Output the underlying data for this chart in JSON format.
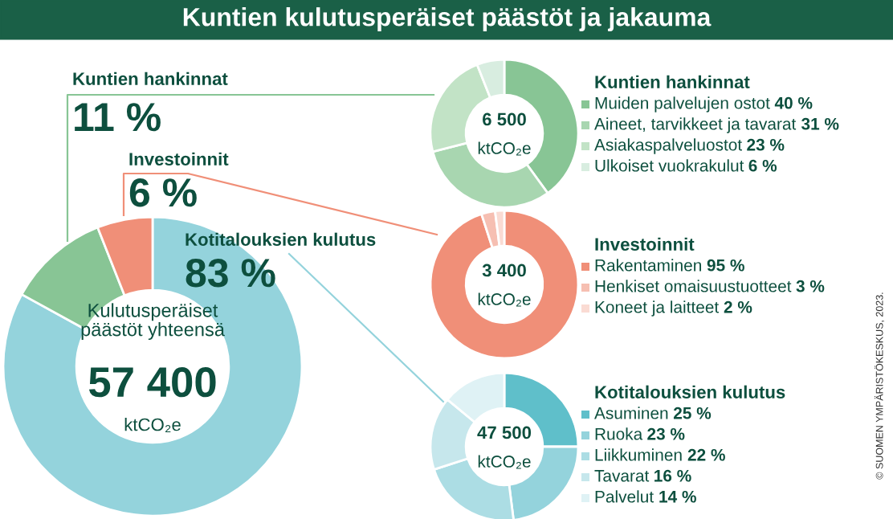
{
  "chart_data": [
    {
      "type": "donut",
      "title": "Kuntien kulutusperäiset päästöt ja jakauma",
      "categories": [
        "Kotitalouksien kulutus",
        "Kuntien hankinnat",
        "Investoinnit"
      ],
      "values": [
        83,
        11,
        6
      ],
      "value_labels": [
        "83 %",
        "11 %",
        "6 %"
      ],
      "colors": [
        "#94d3dc",
        "#88c595",
        "#f08f78"
      ],
      "annotations": [
        "Kulutusperäiset\npäästöt yhteensä",
        "57 400",
        "ktCO₂e",
        "© SUOMEN YMPÄRISTÖKESKUS, 2023."
      ]
    },
    {
      "type": "donut",
      "title": "Kuntien hankinnat",
      "categories": [
        "Muiden palvelujen ostot",
        "Aineet, tarvikkeet ja tavarat",
        "Asiakaspalveluostot",
        "Ulkoiset vuokrakulut"
      ],
      "values": [
        40,
        31,
        23,
        6
      ],
      "value_labels": [
        "40 %",
        "31 %",
        "23 %",
        "6 %"
      ],
      "colors": [
        "#88c595",
        "#a8d6b0",
        "#c2e3c6",
        "#d8ede0"
      ],
      "annotations": [
        "6 500",
        "ktCO₂e"
      ],
      "legend": "right"
    },
    {
      "type": "donut",
      "title": "Investoinnit",
      "categories": [
        "Rakentaminen",
        "Henkiset omaisuustuotteet",
        "Koneet ja laitteet"
      ],
      "values": [
        95,
        3,
        2
      ],
      "value_labels": [
        "95 %",
        "3 %",
        "2 %"
      ],
      "colors": [
        "#f08f78",
        "#f6bfb2",
        "#fadbd3"
      ],
      "annotations": [
        "3 400",
        "ktCO₂e"
      ],
      "legend": "right"
    },
    {
      "type": "donut",
      "title": "Kotitalouksien kulutus",
      "categories": [
        "Asuminen",
        "Ruoka",
        "Liikkuminen",
        "Tavarat",
        "Palvelut"
      ],
      "values": [
        25,
        23,
        22,
        16,
        14
      ],
      "value_labels": [
        "25 %",
        "23 %",
        "22 %",
        "16 %",
        "14 %"
      ],
      "colors": [
        "#5fbfca",
        "#94d3dc",
        "#acdde4",
        "#c6e7ec",
        "#dff2f5"
      ],
      "annotations": [
        "47 500",
        "ktCO₂e"
      ],
      "legend": "right"
    }
  ]
}
